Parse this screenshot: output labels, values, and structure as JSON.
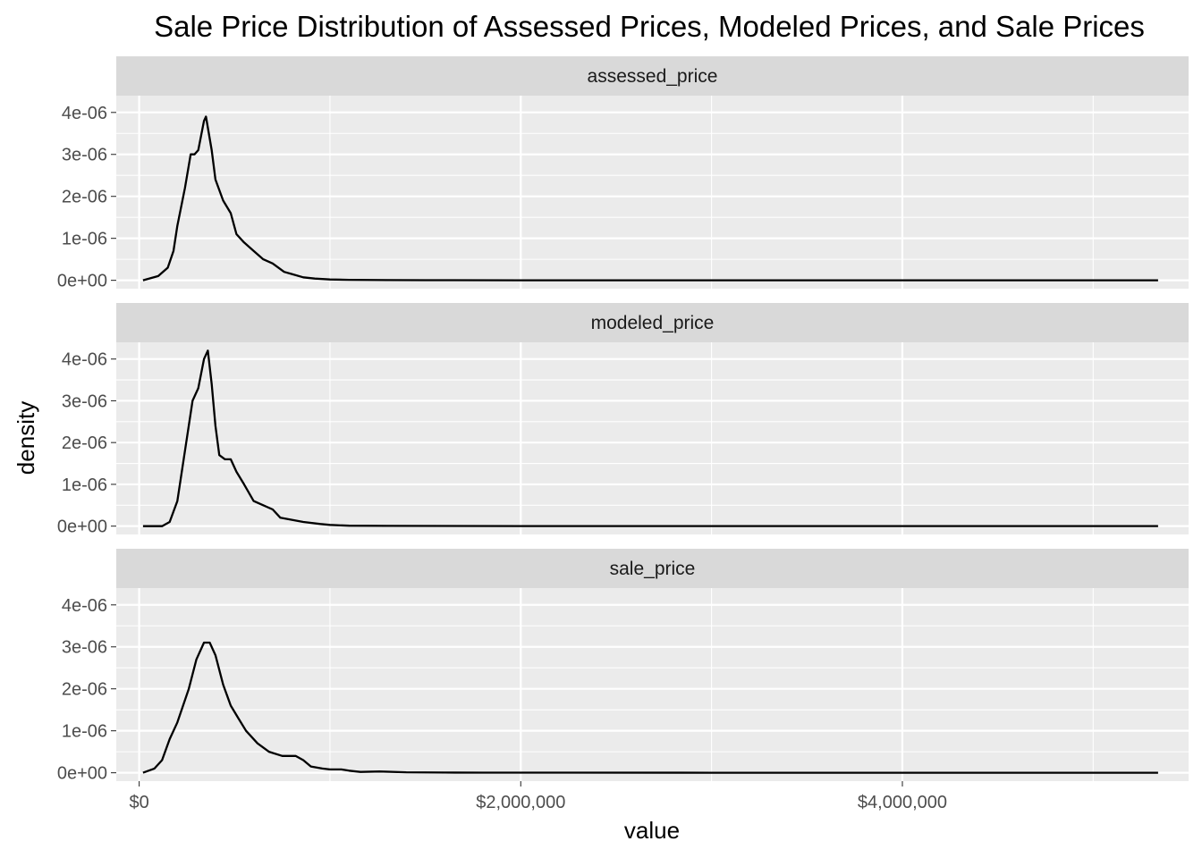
{
  "chart_data": {
    "type": "area",
    "title": "Sale Price Distribution of Assessed Prices, Modeled Prices, and Sale Prices",
    "xlabel": "value",
    "ylabel": "density",
    "xlim": [
      -120000,
      5500000
    ],
    "ylim": [
      -2e-07,
      4.4e-06
    ],
    "x_ticks": [
      {
        "value": 0,
        "label": "$0"
      },
      {
        "value": 2000000,
        "label": "$2,000,000"
      },
      {
        "value": 4000000,
        "label": "$4,000,000"
      }
    ],
    "x_minor_ticks": [
      1000000,
      3000000,
      5000000
    ],
    "y_ticks": [
      {
        "value": 0,
        "label": "0e+00"
      },
      {
        "value": 1e-06,
        "label": "1e-06"
      },
      {
        "value": 2e-06,
        "label": "2e-06"
      },
      {
        "value": 3e-06,
        "label": "3e-06"
      },
      {
        "value": 4e-06,
        "label": "4e-06"
      }
    ],
    "y_minor_ticks": [
      5e-07,
      1.5e-06,
      2.5e-06,
      3.5e-06
    ],
    "grid": true,
    "background": "#ebebeb",
    "strip_background": "#d9d9d9",
    "line_color": "#000000",
    "panels": [
      {
        "name": "assessed_price",
        "x": [
          20000,
          100000,
          150000,
          180000,
          200000,
          240000,
          270000,
          290000,
          310000,
          340000,
          350000,
          380000,
          400000,
          440000,
          480000,
          510000,
          550000,
          600000,
          650000,
          700000,
          760000,
          800000,
          860000,
          920000,
          1000000,
          1100000,
          1300000,
          1500000,
          2000000,
          3000000,
          4000000,
          5340000
        ],
        "y": [
          0.0,
          1e-07,
          3e-07,
          7e-07,
          1.3e-06,
          2.2e-06,
          3e-06,
          3e-06,
          3.1e-06,
          3.8e-06,
          3.9e-06,
          3.1e-06,
          2.4e-06,
          1.9e-06,
          1.6e-06,
          1.1e-06,
          9e-07,
          7e-07,
          5e-07,
          4e-07,
          2e-07,
          1.5e-07,
          7e-08,
          4e-08,
          2e-08,
          1e-08,
          5e-09,
          2e-09,
          1e-09,
          5e-10,
          2e-10,
          1e-10
        ]
      },
      {
        "name": "modeled_price",
        "x": [
          20000,
          120000,
          160000,
          200000,
          240000,
          280000,
          310000,
          340000,
          360000,
          380000,
          400000,
          420000,
          450000,
          480000,
          510000,
          550000,
          600000,
          650000,
          700000,
          740000,
          800000,
          860000,
          950000,
          1000000,
          1100000,
          1300000,
          2000000,
          3000000,
          4000000,
          5340000
        ],
        "y": [
          0.0,
          0.0,
          1e-07,
          6e-07,
          1.8e-06,
          3e-06,
          3.3e-06,
          4e-06,
          4.2e-06,
          3.4e-06,
          2.4e-06,
          1.7e-06,
          1.6e-06,
          1.6e-06,
          1.3e-06,
          1e-06,
          6e-07,
          5e-07,
          4e-07,
          2e-07,
          1.5e-07,
          1e-07,
          5e-08,
          3e-08,
          1e-08,
          5e-09,
          2e-09,
          1e-09,
          5e-10,
          1e-10
        ]
      },
      {
        "name": "sale_price",
        "x": [
          20000,
          80000,
          120000,
          160000,
          200000,
          260000,
          300000,
          340000,
          370000,
          400000,
          440000,
          480000,
          520000,
          560000,
          620000,
          680000,
          750000,
          820000,
          860000,
          900000,
          960000,
          1000000,
          1060000,
          1100000,
          1160000,
          1260000,
          1400000,
          1600000,
          1800000,
          2000000,
          3000000,
          4000000,
          5340000
        ],
        "y": [
          0.0,
          1e-07,
          3e-07,
          8e-07,
          1.2e-06,
          2e-06,
          2.7e-06,
          3.1e-06,
          3.1e-06,
          2.8e-06,
          2.1e-06,
          1.6e-06,
          1.3e-06,
          1e-06,
          7e-07,
          5e-07,
          4e-07,
          4e-07,
          3e-07,
          1.5e-07,
          1e-07,
          8e-08,
          8e-08,
          5e-08,
          2e-08,
          3e-08,
          1e-08,
          5e-09,
          3e-09,
          2e-09,
          1e-09,
          5e-10,
          2e-10
        ]
      }
    ]
  }
}
